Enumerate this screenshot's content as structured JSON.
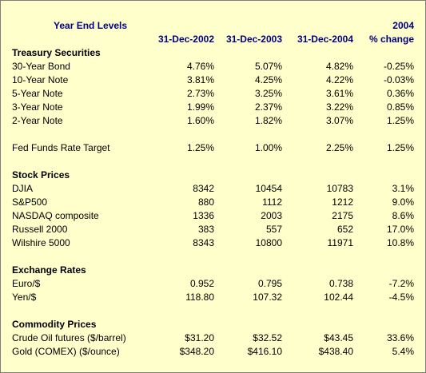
{
  "header": {
    "title": "Year End Levels",
    "year": "2004",
    "columns": [
      "31-Dec-2002",
      "31-Dec-2003",
      "31-Dec-2004",
      "% change"
    ]
  },
  "groups": [
    {
      "title": "Treasury Securities",
      "rows": [
        {
          "label": "30-Year Bond",
          "values": [
            "4.76%",
            "5.07%",
            "4.82%",
            "-0.25%"
          ]
        },
        {
          "label": "10-Year Note",
          "values": [
            "3.81%",
            "4.25%",
            "4.22%",
            "-0.03%"
          ]
        },
        {
          "label": "5-Year Note",
          "values": [
            "2.73%",
            "3.25%",
            "3.61%",
            "0.36%"
          ]
        },
        {
          "label": "3-Year Note",
          "values": [
            "1.99%",
            "2.37%",
            "3.22%",
            "0.85%"
          ]
        },
        {
          "label": "2-Year Note",
          "values": [
            "1.60%",
            "1.82%",
            "3.07%",
            "1.25%"
          ]
        }
      ]
    },
    {
      "rows": [
        {
          "label": "Fed Funds Rate Target",
          "values": [
            "1.25%",
            "1.00%",
            "2.25%",
            "1.25%"
          ]
        }
      ]
    },
    {
      "title": "Stock Prices",
      "rows": [
        {
          "label": "DJIA",
          "values": [
            "8342",
            "10454",
            "10783",
            "3.1%"
          ]
        },
        {
          "label": "S&P500",
          "values": [
            "880",
            "1112",
            "1212",
            "9.0%"
          ]
        },
        {
          "label": "NASDAQ composite",
          "values": [
            "1336",
            "2003",
            "2175",
            "8.6%"
          ]
        },
        {
          "label": "Russell 2000",
          "values": [
            "383",
            "557",
            "652",
            "17.0%"
          ]
        },
        {
          "label": "Wilshire 5000",
          "values": [
            "8343",
            "10800",
            "11971",
            "10.8%"
          ]
        }
      ]
    },
    {
      "title": "Exchange Rates",
      "rows": [
        {
          "label": "Euro/$",
          "values": [
            "0.952",
            "0.795",
            "0.738",
            "-7.2%"
          ]
        },
        {
          "label": "Yen/$",
          "values": [
            "118.80",
            "107.32",
            "102.44",
            "-4.5%"
          ]
        }
      ]
    },
    {
      "title": "Commodity Prices",
      "rows": [
        {
          "label": "Crude Oil futures ($/barrel)",
          "values": [
            "$31.20",
            "$32.52",
            "$43.45",
            "33.6%"
          ]
        },
        {
          "label": "Gold (COMEX) ($/ounce)",
          "values": [
            "$348.20",
            "$416.10",
            "$438.40",
            "5.4%"
          ]
        }
      ]
    }
  ]
}
